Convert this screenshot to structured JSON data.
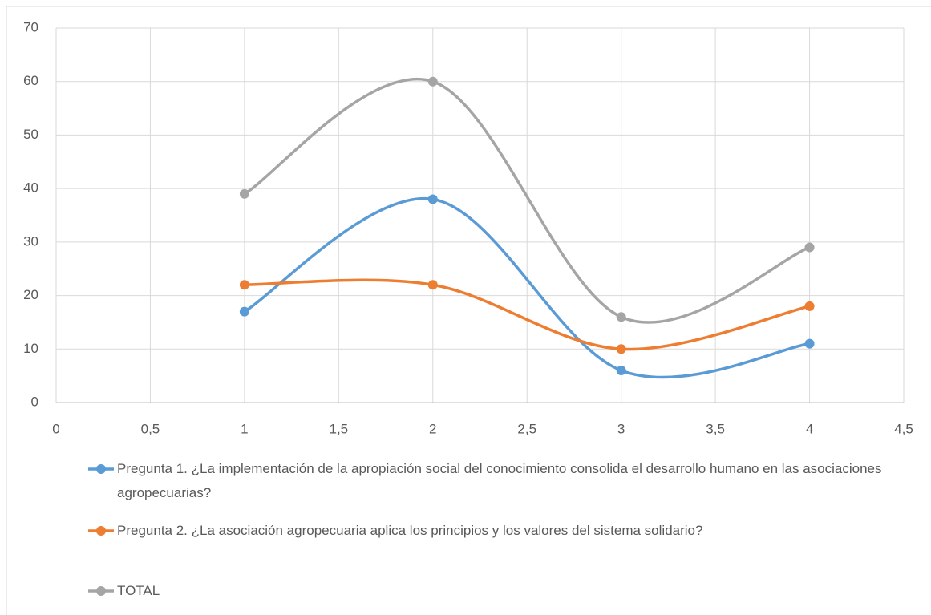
{
  "chart_data": {
    "type": "scatter-smooth",
    "x": [
      1,
      2,
      3,
      4
    ],
    "series": [
      {
        "name": "Pregunta 1. ¿La implementación de la apropiación social del conocimiento consolida el desarrollo humano en las asociaciones agropecuarias?",
        "color": "#5b9bd5",
        "values": [
          17,
          38,
          6,
          11
        ]
      },
      {
        "name": "Pregunta 2.  ¿La asociación agropecuaria aplica  los principios y los valores del sistema solidario?",
        "color": "#ed7d31",
        "values": [
          22,
          22,
          10,
          18
        ]
      },
      {
        "name": "TOTAL",
        "color": "#a5a5a5",
        "values": [
          39,
          60,
          16,
          29
        ]
      }
    ],
    "xlim": [
      0,
      4.5
    ],
    "xticks": [
      0,
      {
        "value": 0.5,
        "label": "0,5"
      },
      1,
      {
        "value": 1.5,
        "label": "1,5"
      },
      2,
      {
        "value": 2.5,
        "label": "2,5"
      },
      3,
      {
        "value": 3.5,
        "label": "3,5"
      },
      4,
      {
        "value": 4.5,
        "label": "4,5"
      }
    ],
    "ylim": [
      0,
      70
    ],
    "yticks": [
      0,
      10,
      20,
      30,
      40,
      50,
      60,
      70
    ],
    "grid": true,
    "legend": "bottom"
  }
}
